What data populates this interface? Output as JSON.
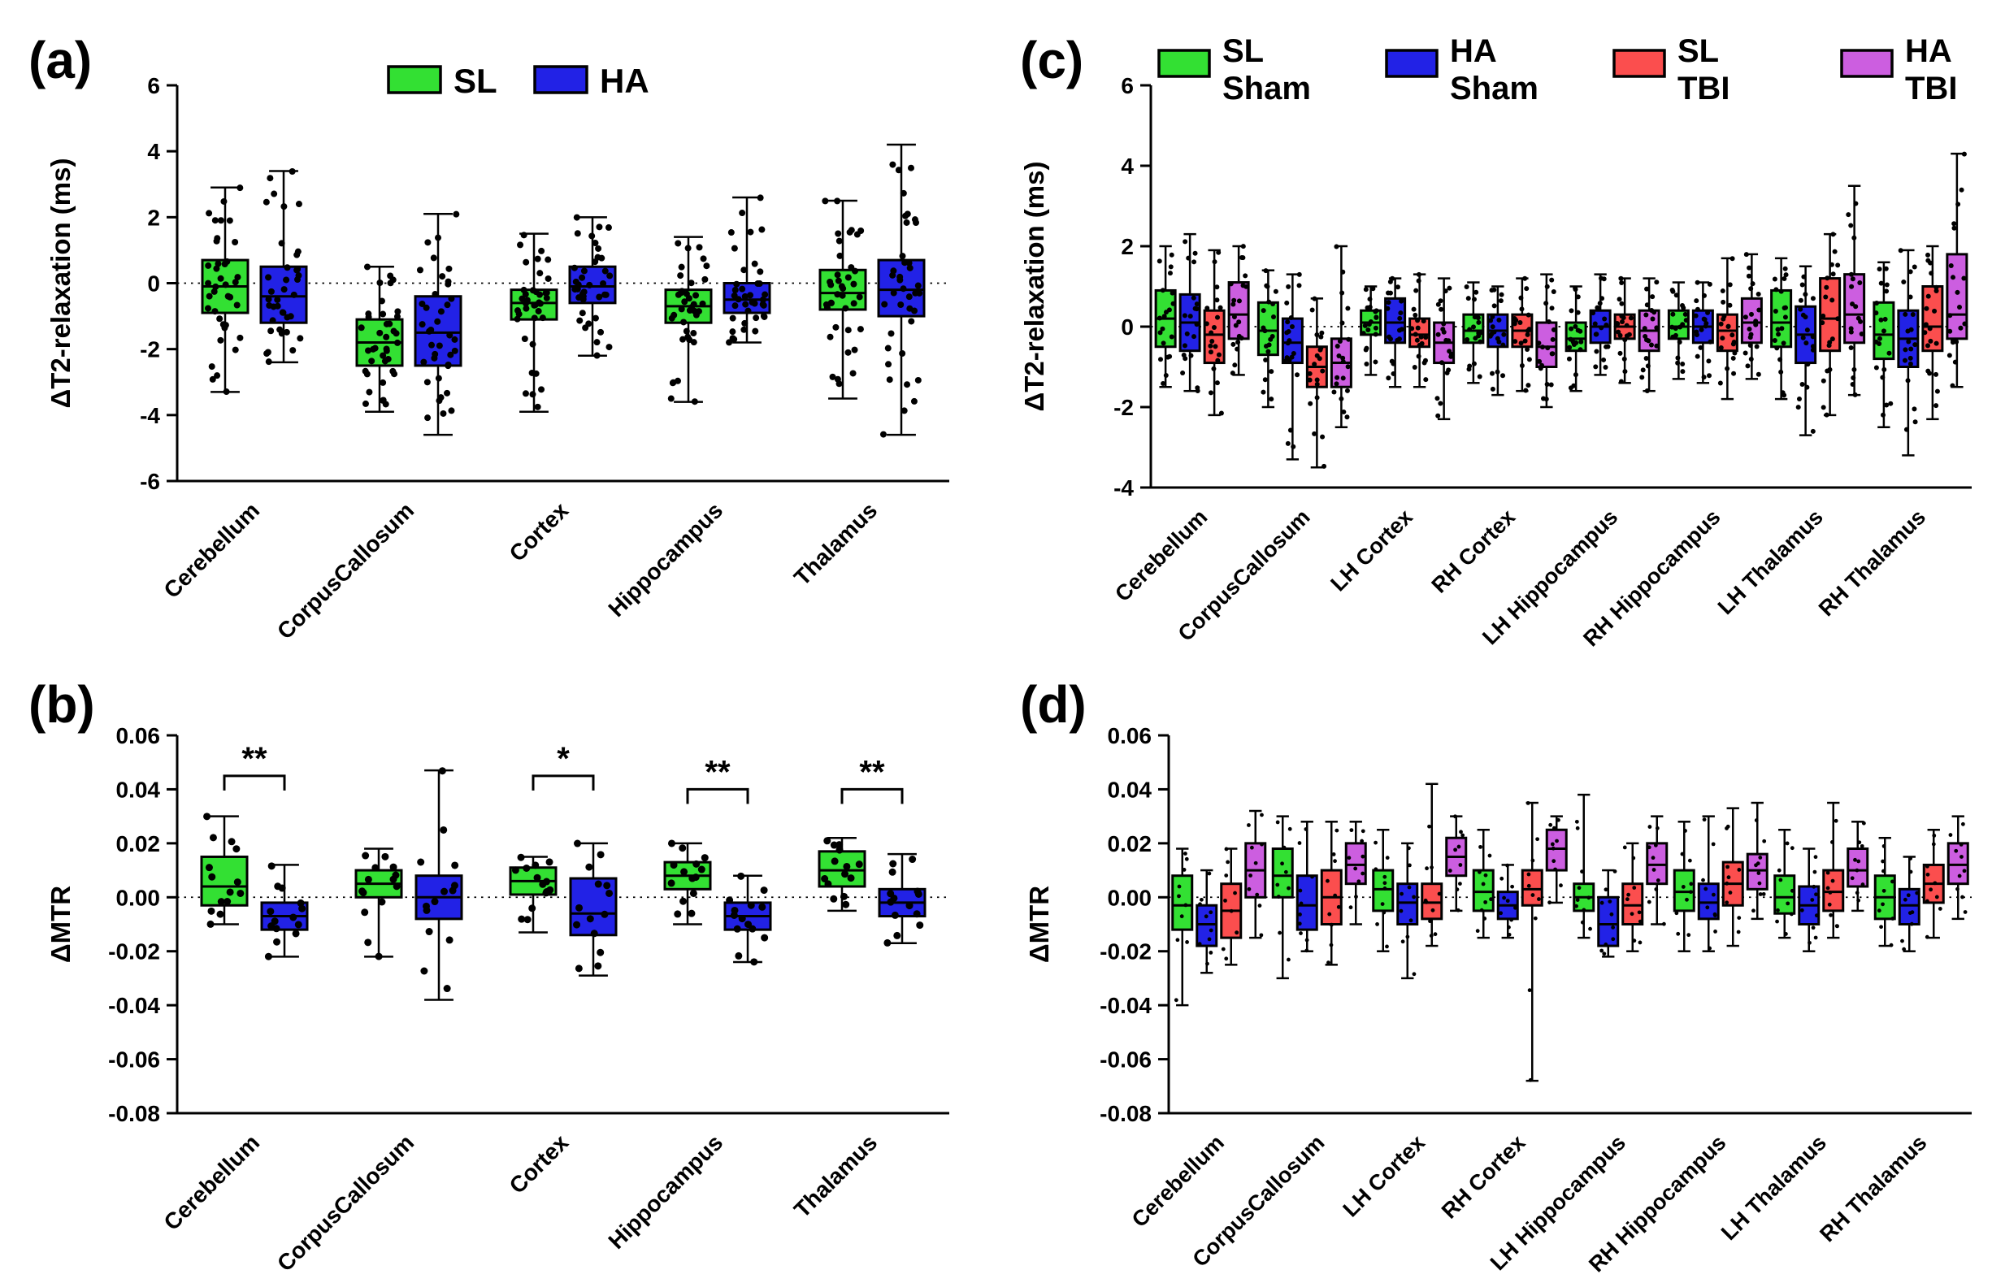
{
  "figure": {
    "panels": {
      "a": {
        "label": "(a)"
      },
      "b": {
        "label": "(b)"
      },
      "c": {
        "label": "(c)"
      },
      "d": {
        "label": "(d)"
      }
    }
  },
  "colors": {
    "sl_green": "#33E033",
    "ha_blue": "#2222E6",
    "sl_tbi_red": "#FB4E4E",
    "ha_tbi_magenta": "#CC5EE0"
  },
  "chart_data": [
    {
      "panel": "a",
      "type": "box",
      "title": "",
      "ylabel": "ΔT2-relaxation (ms)",
      "ylim": [
        -6,
        6
      ],
      "yticks": [
        6,
        4,
        2,
        0,
        -2,
        -4,
        -6
      ],
      "ytick_labels": [
        "6",
        "4",
        "2",
        "0",
        "-2",
        "-4",
        "-6"
      ],
      "zero_line": true,
      "legend": true,
      "legend_position": "top",
      "categories": [
        "Cerebellum",
        "CorpusCallosum",
        "Cortex",
        "Hippocampus",
        "Thalamus"
      ],
      "series": [
        {
          "name": "SL",
          "legend_lines": [
            "SL"
          ],
          "color": "#33E033",
          "lo": [
            -3.3,
            -3.9,
            -3.9,
            -3.6,
            -3.5
          ],
          "q1": [
            -0.9,
            -2.5,
            -1.1,
            -1.2,
            -0.8
          ],
          "med": [
            -0.1,
            -1.8,
            -0.6,
            -0.7,
            -0.3
          ],
          "q3": [
            0.7,
            -1.1,
            -0.2,
            -0.2,
            0.4
          ],
          "hi": [
            2.9,
            0.5,
            1.5,
            1.4,
            2.5
          ]
        },
        {
          "name": "HA",
          "legend_lines": [
            "HA"
          ],
          "color": "#2222E6",
          "lo": [
            -2.4,
            -4.6,
            -2.2,
            -1.8,
            -4.6
          ],
          "q1": [
            -1.2,
            -2.5,
            -0.6,
            -0.9,
            -1.0
          ],
          "med": [
            -0.4,
            -1.5,
            -0.1,
            -0.5,
            -0.2
          ],
          "q3": [
            0.5,
            -0.4,
            0.5,
            0.0,
            0.7
          ],
          "hi": [
            3.4,
            2.1,
            2.0,
            2.6,
            4.2
          ]
        }
      ],
      "significance": []
    },
    {
      "panel": "b",
      "type": "box",
      "title": "",
      "ylabel": "ΔMTR",
      "ylim": [
        -0.08,
        0.06
      ],
      "yticks": [
        0.06,
        0.04,
        0.02,
        0,
        -0.02,
        -0.04,
        -0.06,
        -0.08
      ],
      "ytick_labels": [
        "0.06",
        "0.04",
        "0.02",
        "0.00",
        "-0.02",
        "-0.04",
        "-0.06",
        "-0.08"
      ],
      "zero_line": true,
      "legend": false,
      "categories": [
        "Cerebellum",
        "CorpusCallosum",
        "Cortex",
        "Hippocampus",
        "Thalamus"
      ],
      "series": [
        {
          "name": "SL",
          "legend_lines": [
            "SL"
          ],
          "color": "#33E033",
          "lo": [
            -0.01,
            -0.022,
            -0.013,
            -0.01,
            -0.005
          ],
          "q1": [
            -0.003,
            0.0,
            0.001,
            0.003,
            0.004
          ],
          "med": [
            0.004,
            0.005,
            0.006,
            0.008,
            0.01
          ],
          "q3": [
            0.015,
            0.01,
            0.011,
            0.013,
            0.017
          ],
          "hi": [
            0.03,
            0.018,
            0.015,
            0.02,
            0.022
          ]
        },
        {
          "name": "HA",
          "legend_lines": [
            "HA"
          ],
          "color": "#2222E6",
          "lo": [
            -0.022,
            -0.038,
            -0.029,
            -0.024,
            -0.017
          ],
          "q1": [
            -0.012,
            -0.008,
            -0.014,
            -0.012,
            -0.007
          ],
          "med": [
            -0.007,
            0.0,
            -0.006,
            -0.007,
            -0.002
          ],
          "q3": [
            -0.002,
            0.008,
            0.007,
            -0.002,
            0.003
          ],
          "hi": [
            0.012,
            0.047,
            0.02,
            0.008,
            0.016
          ]
        }
      ],
      "significance": [
        {
          "ci": 0,
          "label": "**",
          "y": 0.045
        },
        {
          "ci": 2,
          "label": "*",
          "y": 0.045
        },
        {
          "ci": 3,
          "label": "**",
          "y": 0.04
        },
        {
          "ci": 4,
          "label": "**",
          "y": 0.04
        }
      ]
    },
    {
      "panel": "c",
      "type": "box",
      "title": "",
      "ylabel": "ΔT2-relaxation (ms)",
      "ylim": [
        -4,
        6
      ],
      "yticks": [
        6,
        4,
        2,
        0,
        -2,
        -4
      ],
      "ytick_labels": [
        "6",
        "4",
        "2",
        "0",
        "-2",
        "-4"
      ],
      "zero_line": true,
      "legend": true,
      "legend_position": "top",
      "categories": [
        "Cerebellum",
        "CorpusCallosum",
        "LH Cortex",
        "RH Cortex",
        "LH Hippocampus",
        "RH Hippocampus",
        "LH Thalamus",
        "RH Thalamus"
      ],
      "series": [
        {
          "name": "SL Sham",
          "legend_lines": [
            "SL",
            "Sham"
          ],
          "color": "#33E033",
          "lo": [
            -1.5,
            -2.0,
            -1.2,
            -1.4,
            -1.6,
            -1.3,
            -1.8,
            -2.5
          ],
          "q1": [
            -0.5,
            -0.7,
            -0.2,
            -0.4,
            -0.6,
            -0.3,
            -0.5,
            -0.8
          ],
          "med": [
            0.2,
            -0.1,
            0.1,
            -0.1,
            -0.3,
            0.0,
            0.1,
            -0.2
          ],
          "q3": [
            0.9,
            0.6,
            0.4,
            0.3,
            0.1,
            0.4,
            0.9,
            0.6
          ],
          "hi": [
            2.0,
            1.4,
            1.0,
            1.1,
            1.0,
            1.1,
            1.7,
            1.6
          ]
        },
        {
          "name": "HA Sham",
          "legend_lines": [
            "HA",
            "Sham"
          ],
          "color": "#2222E6",
          "lo": [
            -1.6,
            -3.3,
            -1.5,
            -1.7,
            -1.2,
            -1.4,
            -2.7,
            -3.2
          ],
          "q1": [
            -0.6,
            -0.9,
            -0.4,
            -0.5,
            -0.4,
            -0.4,
            -0.9,
            -1.0
          ],
          "med": [
            0.1,
            -0.4,
            0.1,
            -0.1,
            0.0,
            0.0,
            -0.2,
            -0.3
          ],
          "q3": [
            0.8,
            0.2,
            0.7,
            0.3,
            0.4,
            0.4,
            0.5,
            0.4
          ],
          "hi": [
            2.3,
            1.3,
            1.2,
            1.0,
            1.3,
            1.1,
            1.5,
            1.9
          ]
        },
        {
          "name": "SL TBI",
          "legend_lines": [
            "SL",
            "TBI"
          ],
          "color": "#FB4E4E",
          "lo": [
            -2.2,
            -3.5,
            -1.5,
            -1.6,
            -1.4,
            -1.8,
            -2.2,
            -2.3
          ],
          "q1": [
            -0.9,
            -1.5,
            -0.5,
            -0.5,
            -0.3,
            -0.6,
            -0.6,
            -0.6
          ],
          "med": [
            -0.2,
            -1.0,
            -0.2,
            -0.1,
            0.0,
            -0.1,
            0.2,
            0.0
          ],
          "q3": [
            0.4,
            -0.5,
            0.2,
            0.3,
            0.3,
            0.3,
            1.2,
            1.0
          ],
          "hi": [
            1.9,
            0.7,
            1.3,
            1.2,
            1.2,
            1.7,
            2.3,
            2.0
          ]
        },
        {
          "name": "HA TBI",
          "legend_lines": [
            "HA",
            "TBI"
          ],
          "color": "#CC5EE0",
          "lo": [
            -1.2,
            -2.5,
            -2.3,
            -2.0,
            -1.6,
            -1.3,
            -1.7,
            -1.5
          ],
          "q1": [
            -0.3,
            -1.5,
            -0.9,
            -1.0,
            -0.6,
            -0.4,
            -0.4,
            -0.3
          ],
          "med": [
            0.3,
            -0.9,
            -0.4,
            -0.5,
            -0.1,
            0.1,
            0.3,
            0.3
          ],
          "q3": [
            1.1,
            -0.3,
            0.1,
            0.1,
            0.4,
            0.7,
            1.3,
            1.8
          ],
          "hi": [
            2.0,
            2.0,
            1.2,
            1.3,
            1.2,
            1.8,
            3.5,
            4.3
          ]
        }
      ],
      "significance": []
    },
    {
      "panel": "d",
      "type": "box",
      "title": "",
      "ylabel": "ΔMTR",
      "ylim": [
        -0.08,
        0.06
      ],
      "yticks": [
        0.06,
        0.04,
        0.02,
        0,
        -0.02,
        -0.04,
        -0.06,
        -0.08
      ],
      "ytick_labels": [
        "0.06",
        "0.04",
        "0.02",
        "0.00",
        "-0.02",
        "-0.04",
        "-0.06",
        "-0.08"
      ],
      "zero_line": true,
      "legend": false,
      "categories": [
        "Cerebellum",
        "CorpusCallosum",
        "LH Cortex",
        "RH Cortex",
        "LH Hippocampus",
        "RH Hippocampus",
        "LH Thalamus",
        "RH Thalamus"
      ],
      "series": [
        {
          "name": "SL Sham",
          "legend_lines": [
            "SL",
            "Sham"
          ],
          "color": "#33E033",
          "lo": [
            -0.04,
            -0.03,
            -0.02,
            -0.015,
            -0.015,
            -0.02,
            -0.015,
            -0.018
          ],
          "q1": [
            -0.012,
            0.0,
            -0.005,
            -0.005,
            -0.005,
            -0.005,
            -0.006,
            -0.008
          ],
          "med": [
            -0.003,
            0.008,
            0.003,
            0.002,
            0.0,
            0.002,
            0.0,
            0.0
          ],
          "q3": [
            0.008,
            0.018,
            0.01,
            0.01,
            0.005,
            0.01,
            0.008,
            0.008
          ],
          "hi": [
            0.018,
            0.03,
            0.025,
            0.025,
            0.038,
            0.028,
            0.025,
            0.022
          ]
        },
        {
          "name": "HA Sham",
          "legend_lines": [
            "HA",
            "Sham"
          ],
          "color": "#2222E6",
          "lo": [
            -0.028,
            -0.02,
            -0.03,
            -0.015,
            -0.022,
            -0.02,
            -0.02,
            -0.02
          ],
          "q1": [
            -0.018,
            -0.012,
            -0.01,
            -0.008,
            -0.018,
            -0.008,
            -0.01,
            -0.01
          ],
          "med": [
            -0.01,
            -0.003,
            -0.002,
            -0.003,
            -0.01,
            -0.002,
            -0.003,
            -0.003
          ],
          "q3": [
            -0.003,
            0.008,
            0.005,
            0.002,
            0.0,
            0.005,
            0.004,
            0.003
          ],
          "hi": [
            0.01,
            0.028,
            0.02,
            0.012,
            0.01,
            0.03,
            0.018,
            0.015
          ]
        },
        {
          "name": "SL TBI",
          "legend_lines": [
            "SL",
            "TBI"
          ],
          "color": "#FB4E4E",
          "lo": [
            -0.025,
            -0.025,
            -0.018,
            -0.068,
            -0.02,
            -0.018,
            -0.015,
            -0.015
          ],
          "q1": [
            -0.015,
            -0.01,
            -0.008,
            -0.003,
            -0.01,
            -0.003,
            -0.005,
            -0.002
          ],
          "med": [
            -0.005,
            0.0,
            -0.002,
            0.003,
            -0.003,
            0.005,
            0.002,
            0.005
          ],
          "q3": [
            0.005,
            0.01,
            0.005,
            0.01,
            0.005,
            0.013,
            0.01,
            0.012
          ],
          "hi": [
            0.018,
            0.028,
            0.042,
            0.035,
            0.02,
            0.033,
            0.035,
            0.025
          ]
        },
        {
          "name": "HA TBI",
          "legend_lines": [
            "HA",
            "TBI"
          ],
          "color": "#CC5EE0",
          "lo": [
            -0.015,
            -0.01,
            -0.005,
            -0.002,
            -0.01,
            -0.008,
            -0.005,
            -0.008
          ],
          "q1": [
            0.0,
            0.005,
            0.008,
            0.01,
            0.005,
            0.003,
            0.004,
            0.005
          ],
          "med": [
            0.01,
            0.012,
            0.015,
            0.018,
            0.012,
            0.01,
            0.01,
            0.012
          ],
          "q3": [
            0.02,
            0.02,
            0.022,
            0.025,
            0.02,
            0.016,
            0.018,
            0.02
          ],
          "hi": [
            0.032,
            0.028,
            0.03,
            0.03,
            0.03,
            0.035,
            0.028,
            0.03
          ]
        }
      ],
      "significance": []
    }
  ]
}
